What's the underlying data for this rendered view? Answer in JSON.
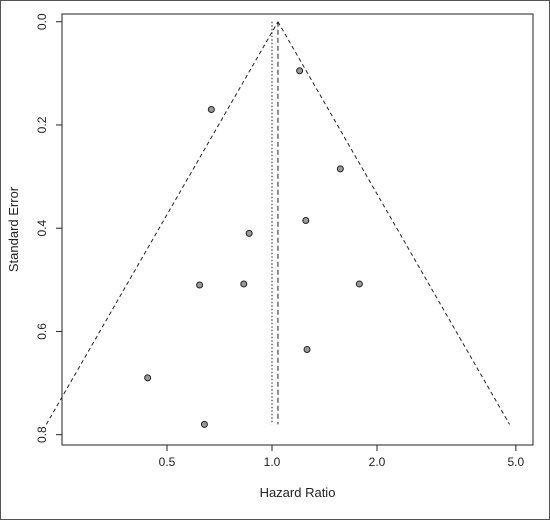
{
  "chart_data": {
    "type": "scatter",
    "subtype": "funnel-plot",
    "title": "",
    "xlabel": "Hazard Ratio",
    "ylabel": "Standard Error",
    "x_scale": "log",
    "x_ticks": [
      0.5,
      1.0,
      2.0,
      5.0
    ],
    "x_tick_labels": [
      "0.5",
      "1.0",
      "2.0",
      "5.0"
    ],
    "xlim": [
      0.25,
      5.6
    ],
    "y_ticks": [
      0.0,
      0.2,
      0.4,
      0.6,
      0.8
    ],
    "y_tick_labels": [
      "0.0",
      "0.2",
      "0.4",
      "0.6",
      "0.8"
    ],
    "ylim": [
      0.82,
      -0.015
    ],
    "y_reversed": true,
    "grid": false,
    "legend": "none",
    "pooled_estimate": 1.04,
    "null_line": 1.0,
    "funnel_se_max": 0.78,
    "points": [
      {
        "x": 1.2,
        "y": 0.095
      },
      {
        "x": 0.67,
        "y": 0.17
      },
      {
        "x": 1.57,
        "y": 0.285
      },
      {
        "x": 1.25,
        "y": 0.385
      },
      {
        "x": 0.86,
        "y": 0.41
      },
      {
        "x": 0.62,
        "y": 0.51
      },
      {
        "x": 0.83,
        "y": 0.508
      },
      {
        "x": 1.78,
        "y": 0.508
      },
      {
        "x": 1.26,
        "y": 0.635
      },
      {
        "x": 0.44,
        "y": 0.69
      },
      {
        "x": 0.64,
        "y": 0.78
      }
    ],
    "colors": {
      "point_fill": "#9a9a9a",
      "point_stroke": "#222222",
      "line": "#222222",
      "frame": "#222222"
    }
  }
}
